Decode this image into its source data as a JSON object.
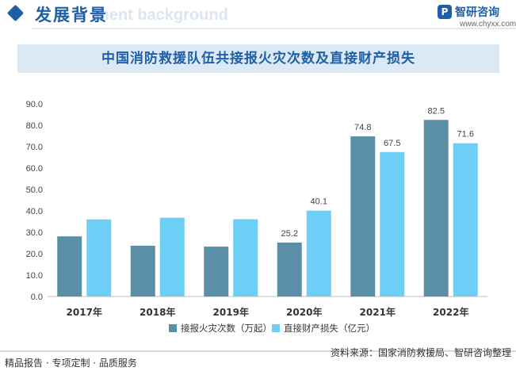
{
  "header": {
    "title": "发展背景",
    "bg_text": "ment background"
  },
  "logo": {
    "icon_letter": "P",
    "name": "智研咨询",
    "url": "www.chyxx.com"
  },
  "chart_data": {
    "type": "bar",
    "title": "中国消防救援队伍共接报火灾次数及直接财产损失",
    "categories": [
      "2017年",
      "2018年",
      "2019年",
      "2020年",
      "2021年",
      "2022年"
    ],
    "series": [
      {
        "name": "接报火灾次数（万起）",
        "color": "#5b8fa8",
        "values": [
          28.1,
          23.7,
          23.3,
          25.2,
          74.8,
          82.5
        ],
        "labels": [
          "",
          "",
          "",
          "25.2",
          "74.8",
          "82.5"
        ]
      },
      {
        "name": "直接财产损失（亿元）",
        "color": "#6ecff6",
        "values": [
          36.0,
          36.8,
          36.1,
          40.1,
          67.5,
          71.6
        ],
        "labels": [
          "",
          "",
          "",
          "40.1",
          "67.5",
          "71.6"
        ]
      }
    ],
    "y_ticks": [
      "0.0",
      "10.0",
      "20.0",
      "30.0",
      "40.0",
      "50.0",
      "60.0",
      "70.0",
      "80.0",
      "90.0"
    ],
    "ylim": [
      0,
      90
    ],
    "grid": false,
    "legend_position": "bottom"
  },
  "footer": {
    "left": "精品报告 · 专项定制 · 品质服务",
    "right": "资料来源：国家消防救援局、智研咨询整理"
  }
}
